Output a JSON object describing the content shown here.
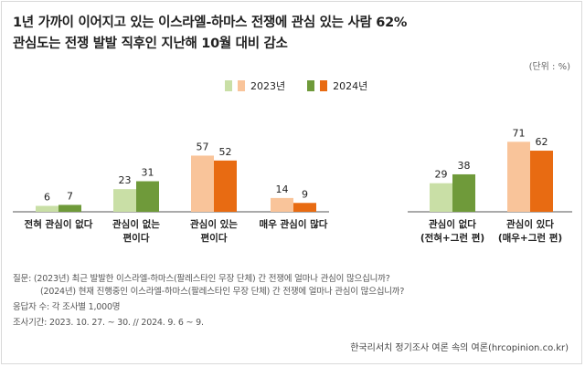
{
  "title_line1": "1년 가까이 이어지고 있는 이스라엘-하마스 전쟁에 관심 있는 사람 62%",
  "title_line2": "관심도는 전쟁 발발 직후인 지난해 10월 대비 감소",
  "unit": "(단위 : %)",
  "legend": {
    "label_2023": "2023년",
    "label_2024": "2024년"
  },
  "colors": {
    "left_2023": "#c9dfa6",
    "left_2024": "#6f9a3a",
    "right_2023": "#f9c49a",
    "right_2024": "#e86b12",
    "baseline": "#555555"
  },
  "chart_data": {
    "type": "bar",
    "categories": [
      [
        "전혀 관심이 없다"
      ],
      [
        "관심이 없는",
        "편이다"
      ],
      [
        "관심이 있는",
        "편이다"
      ],
      [
        "매우 관심이 많다"
      ],
      [
        "관심이 없다",
        "(전혀+그런 편)"
      ],
      [
        "관심이 있다",
        "(매우+그런 편)"
      ]
    ],
    "series": [
      {
        "name": "2023년",
        "values": [
          6,
          23,
          57,
          14,
          29,
          71
        ]
      },
      {
        "name": "2024년",
        "values": [
          7,
          31,
          52,
          9,
          38,
          62
        ]
      }
    ],
    "palette": [
      "green",
      "green",
      "orange",
      "orange",
      "green",
      "orange"
    ],
    "ylim": [
      0,
      80
    ],
    "grid": false,
    "legend_position": "top-center"
  },
  "notes": {
    "question_1": "질문:   (2023년) 최근 발발한 이스라엘-하마스(팔레스타인 무장 단체) 간 전쟁에 얼마나 관심이 많으십니까?",
    "question_2": "(2024년) 현재 진행중인 이스라엘-하마스(팔레스타인 무장 단체) 간 전쟁에 얼마나 관심이 많으십니까?",
    "respondents": "응답자 수: 각 조사별 1,000명",
    "period": "조사기간: 2023. 10. 27. ~ 30. // 2024. 9. 6 ~ 9."
  },
  "source": "한국리서치 정기조사 여론 속의 여론(hrcopinion.co.kr)"
}
